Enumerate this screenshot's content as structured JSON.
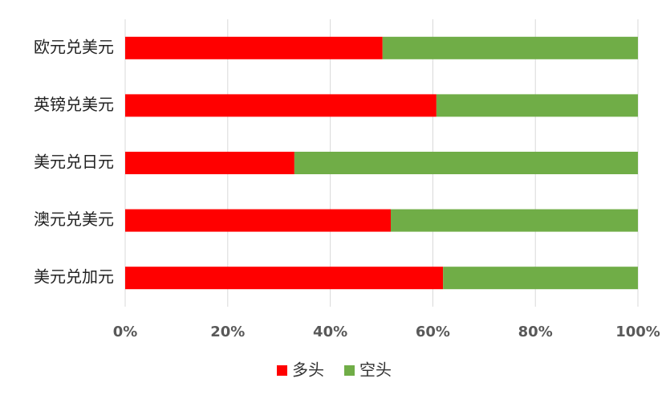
{
  "chart_data": {
    "type": "stacked-bar-horizontal",
    "categories": [
      "欧元兑美元",
      "英镑兑美元",
      "美元兑日元",
      "澳元兑美元",
      "美元兑加元"
    ],
    "series": [
      {
        "name": "多头",
        "color": "#ff0000",
        "values": [
          50.2,
          60.7,
          33.0,
          51.8,
          62.0
        ]
      },
      {
        "name": "空头",
        "color": "#70ad47",
        "values": [
          49.8,
          39.3,
          67.0,
          48.2,
          38.0
        ]
      }
    ],
    "xlim": [
      0,
      100
    ],
    "xticks": [
      {
        "value": 0,
        "label": "0%"
      },
      {
        "value": 20,
        "label": "20%"
      },
      {
        "value": 40,
        "label": "40%"
      },
      {
        "value": 60,
        "label": "60%"
      },
      {
        "value": 80,
        "label": "80%"
      },
      {
        "value": 100,
        "label": "100%"
      }
    ],
    "grid": true
  }
}
